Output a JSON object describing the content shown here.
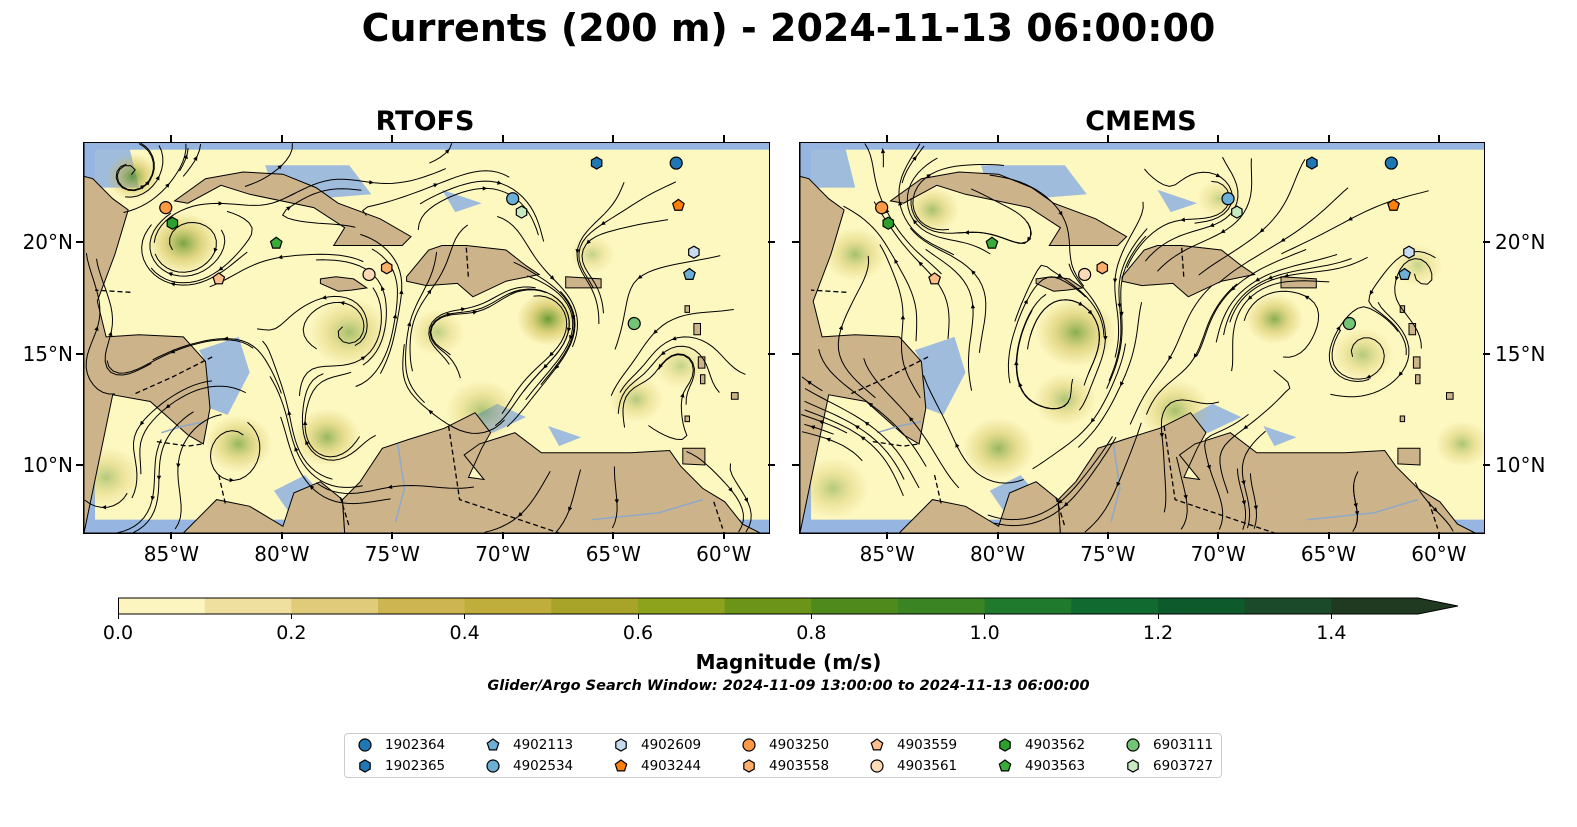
{
  "title": "Currents (200 m) - 2024-11-13 06:00:00",
  "panels": [
    {
      "id": "rtofs",
      "title": "RTOFS"
    },
    {
      "id": "cmems",
      "title": "CMEMS"
    }
  ],
  "map_extent": {
    "lon_min": -89,
    "lon_max": -58,
    "lat_min": 7,
    "lat_max": 24.5
  },
  "lon_ticks": [
    {
      "value": -85,
      "label": "85°W"
    },
    {
      "value": -80,
      "label": "80°W"
    },
    {
      "value": -75,
      "label": "75°W"
    },
    {
      "value": -70,
      "label": "70°W"
    },
    {
      "value": -65,
      "label": "65°W"
    },
    {
      "value": -60,
      "label": "60°W"
    }
  ],
  "lat_ticks": [
    {
      "value": 20,
      "label": "20°N"
    },
    {
      "value": 15,
      "label": "15°N"
    },
    {
      "value": 10,
      "label": "10°N"
    }
  ],
  "colors": {
    "ocean": "#96b5e0",
    "land": "#ccb38a",
    "field_low": "#fdf7c0",
    "field_mid": "#c9b84a",
    "field_high": "#4f8a1c"
  },
  "colorbar": {
    "label": "Magnitude (m/s)",
    "ticks": [
      "0.0",
      "0.2",
      "0.4",
      "0.6",
      "0.8",
      "1.0",
      "1.2",
      "1.4"
    ],
    "min": 0.0,
    "max": 1.5,
    "step": 0.1,
    "extend": "max",
    "colors": [
      "#fdf5c0",
      "#f0e0a0",
      "#dfcb7a",
      "#cdb652",
      "#bfad3c",
      "#a8a42a",
      "#8ea31c",
      "#6b9418",
      "#4f8a1c",
      "#3a8424",
      "#1f7a2e",
      "#116a30",
      "#0d5a2c",
      "#1b4a2a",
      "#203a22"
    ]
  },
  "search_window": "Glider/Argo Search Window: 2024-11-09 13:00:00 to 2024-11-13 06:00:00",
  "legend": [
    {
      "id": "1902364",
      "marker": "circle",
      "color": "#1f77b4"
    },
    {
      "id": "1902365",
      "marker": "hexagon",
      "color": "#1f77b4"
    },
    {
      "id": "4902113",
      "marker": "pentagon",
      "color": "#6baed6"
    },
    {
      "id": "4902534",
      "marker": "circle",
      "color": "#6baed6"
    },
    {
      "id": "4902609",
      "marker": "hexagon",
      "color": "#c6dbef"
    },
    {
      "id": "4903244",
      "marker": "pentagon",
      "color": "#ff7f0e"
    },
    {
      "id": "4903250",
      "marker": "circle",
      "color": "#fd9a44"
    },
    {
      "id": "4903558",
      "marker": "hexagon",
      "color": "#fdae6b"
    },
    {
      "id": "4903559",
      "marker": "pentagon",
      "color": "#fdc08c"
    },
    {
      "id": "4903561",
      "marker": "circle",
      "color": "#fdd9b5"
    },
    {
      "id": "4903562",
      "marker": "hexagon",
      "color": "#2ca02c"
    },
    {
      "id": "4903563",
      "marker": "pentagon",
      "color": "#3aab3a"
    },
    {
      "id": "6903111",
      "marker": "circle",
      "color": "#74c476"
    },
    {
      "id": "6903727",
      "marker": "hexagon",
      "color": "#c7e9c0"
    }
  ],
  "float_positions": [
    {
      "id": "1902364",
      "lon": -62.2,
      "lat": 23.6
    },
    {
      "id": "1902365",
      "lon": -65.8,
      "lat": 23.6
    },
    {
      "id": "4902113",
      "lon": -61.6,
      "lat": 18.6
    },
    {
      "id": "4902534",
      "lon": -69.6,
      "lat": 22.0
    },
    {
      "id": "4902609",
      "lon": -61.4,
      "lat": 19.6
    },
    {
      "id": "4903244",
      "lon": -62.1,
      "lat": 21.7
    },
    {
      "id": "4903250",
      "lon": -85.3,
      "lat": 21.6
    },
    {
      "id": "4903558",
      "lon": -75.3,
      "lat": 18.9
    },
    {
      "id": "4903559",
      "lon": -82.9,
      "lat": 18.4
    },
    {
      "id": "4903561",
      "lon": -76.1,
      "lat": 18.6
    },
    {
      "id": "4903562",
      "lon": -85.0,
      "lat": 20.9
    },
    {
      "id": "4903563",
      "lon": -80.3,
      "lat": 20.0
    },
    {
      "id": "6903111",
      "lon": -64.1,
      "lat": 16.4
    },
    {
      "id": "6903727",
      "lon": -69.2,
      "lat": 21.4
    }
  ]
}
